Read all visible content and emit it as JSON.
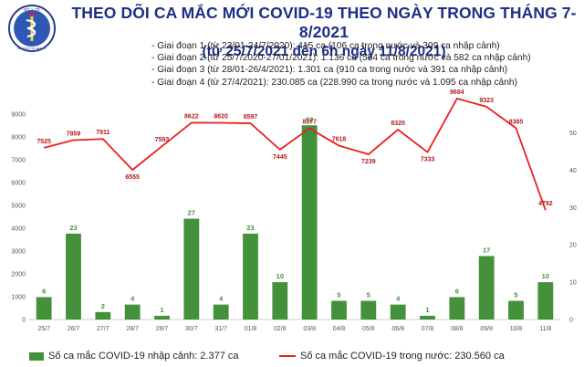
{
  "header": {
    "title": "THEO DÕI CA MẮC MỚI COVID-19 THEO NGÀY TRONG THÁNG 7-8/2021",
    "subtitle": "(từ 25/7/2021 đến 6h ngày 11/8/2021)",
    "logo_text": "BỘ Y TẾ",
    "logo_subtext": "MINISTRY OF HEALTH"
  },
  "phases": [
    "Giai đoạn 1 (từ 23/01-24/7/2020): 415 ca (106 ca trong nước và 309 ca nhập cảnh)",
    "Giai đoạn 2 (từ 25/7/2020-27/01/2021): 1.136 ca (554 ca trong nước và 582 ca nhập cảnh)",
    "Giai đoạn 3 (từ 28/01-26/4/2021): 1.301 ca (910 ca trong nước và 391 ca nhập cảnh)",
    "Giai đoạn 4 (từ 27/4/2021): 230.085 ca (228.990 ca trong nước và 1.095 ca nhập cảnh)"
  ],
  "legend": {
    "bars": "Số ca mắc COVID-19 nhập cảnh: 2.377 ca",
    "line": "Số ca mắc COVID-19 trong nước: 230.560 ca"
  },
  "colors": {
    "bar": "#43913a",
    "line": "#e8201e",
    "title": "#1c2f86"
  },
  "chart_data": {
    "type": "bar",
    "categories": [
      "25/7",
      "26/7",
      "27/7",
      "28/7",
      "29/7",
      "30/7",
      "31/7",
      "01/8",
      "02/8",
      "03/8",
      "04/8",
      "05/8",
      "06/8",
      "07/8",
      "08/8",
      "09/8",
      "10/8",
      "11/8"
    ],
    "series": [
      {
        "name": "Số ca mắc COVID-19 nhập cảnh: 2.377 ca",
        "type": "bar",
        "axis": "right",
        "values": [
          6,
          23,
          2,
          4,
          1,
          27,
          4,
          23,
          10,
          52,
          5,
          5,
          4,
          1,
          6,
          17,
          5,
          10
        ]
      },
      {
        "name": "Số ca mắc COVID-19 trong nước: 230.560 ca",
        "type": "line",
        "axis": "left",
        "values": [
          7525,
          7859,
          7911,
          6555,
          7593,
          8622,
          8620,
          8597,
          7445,
          8377,
          7618,
          7239,
          8320,
          7333,
          9684,
          9323,
          8385,
          4792
        ],
        "labels": [
          "7525",
          "7859",
          "7911",
          "6555",
          "7593",
          "8622",
          "8620",
          "8597",
          "7445",
          "8377",
          "7618",
          "7239",
          "8320",
          "7333",
          "9684",
          "9323",
          "8385",
          "4792"
        ]
      }
    ],
    "left_axis": {
      "min": 0,
      "max": 9000,
      "ticks": [
        "0",
        "1000",
        "2000",
        "3000",
        "4000",
        "5000",
        "6000",
        "7000",
        "8000",
        "9000"
      ]
    },
    "right_axis": {
      "min": 0,
      "max": 55,
      "ticks": [
        "0",
        "10",
        "20",
        "30",
        "40",
        "50"
      ]
    },
    "grid": false,
    "legend_position": "bottom"
  }
}
